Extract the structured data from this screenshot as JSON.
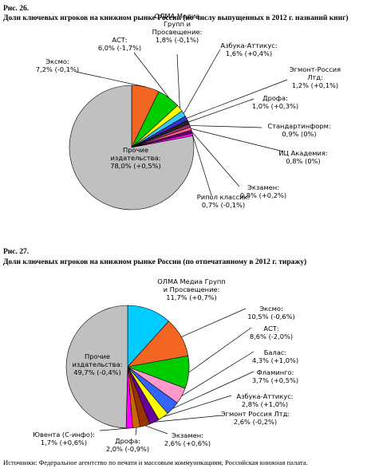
{
  "chart_data": [
    {
      "type": "pie",
      "figure_label": "Рис. 26.",
      "title": "Доли ключевых игроков на книжном рынке России (по числу выпущенных в 2012 г. названий книг)",
      "categories": [
        "Эксмо:",
        "АСТ:",
        "ОЛМА Медиа Групп и Просвещение:",
        "Азбука-Аттикус:",
        "Эгмонт-Россия Лтд:",
        "Дрофа:",
        "Стандартинформ:",
        "ИЦ Академия:",
        "Экзамен:",
        "Рипол классик:",
        "Прочие издательства:"
      ],
      "values": [
        7.2,
        6.0,
        1.8,
        1.6,
        1.2,
        1.0,
        0.9,
        0.8,
        0.8,
        0.7,
        78.0
      ],
      "value_labels": [
        "7,2% (-0,1%)",
        "6,0% (-1,7%)",
        "1,8% (-0,1%)",
        "1,6% (+0,4%)",
        "1,2% (+0,1%)",
        "1,0% (+0,3%)",
        "0,9% (0%)",
        "0,8% (0%)",
        "0,8% (+0,2%)",
        "0,7% (-0,1%)",
        "78,0% (+0,5%)"
      ],
      "colors": [
        "#f26522",
        "#00cc00",
        "#ffff00",
        "#33ccff",
        "#3333cc",
        "#222222",
        "#993366",
        "#ff6699",
        "#660066",
        "#ff00ff",
        "#c0c0c0"
      ]
    },
    {
      "type": "pie",
      "figure_label": "Рис. 27.",
      "title": "Доли ключевых игроков на книжном рынке России (по отпечатанному в 2012 г. тиражу)",
      "categories": [
        "ОЛМА Медиа Групп и Просвещение:",
        "Эксмо:",
        "АСТ:",
        "Балас:",
        "Фламинго:",
        "Азбука-Аттикус:",
        "Эгмонт Россия Лтд:",
        "Экзамен:",
        "Дрофа:",
        "Ювента (С-инфо):",
        "Прочие издательства:"
      ],
      "values": [
        11.7,
        10.5,
        8.6,
        4.3,
        3.7,
        2.8,
        2.6,
        2.6,
        2.0,
        1.7,
        49.7
      ],
      "value_labels": [
        "11,7% (+0,7%)",
        "10,5% (-0,6%)",
        "8,6% (-2,0%)",
        "4,3% (+1,0%)",
        "3,7% (+0,5%)",
        "2,8% (+1,0%)",
        "2,6% (-0,2%)",
        "2,6% (+0,6%)",
        "2,0% (-0,9%)",
        "1,7% (+0,6%)",
        "49,7% (-0,4%)"
      ],
      "colors": [
        "#00ccff",
        "#f26522",
        "#00cc00",
        "#ff99cc",
        "#3366ff",
        "#ffff00",
        "#660099",
        "#993300",
        "#cc6600",
        "#ff00ff",
        "#c0c0c0"
      ]
    }
  ],
  "source": "Источники: Федеральное агентство по печати и массовым коммуникациям, Российская книжная палата."
}
